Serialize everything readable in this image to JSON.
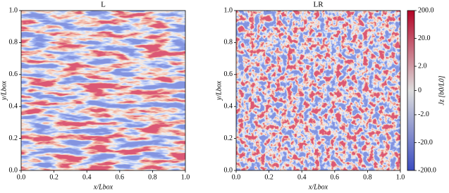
{
  "chart_data": [
    {
      "type": "heatmap",
      "title": "L",
      "xlabel": "x/Lbox",
      "ylabel": "y/Lbox",
      "xlim": [
        0,
        1
      ],
      "ylim": [
        0,
        1
      ],
      "xticks": [
        {
          "value": 0,
          "label": "0.0"
        },
        0.2,
        0.4,
        0.6,
        0.8,
        {
          "value": 1,
          "label": "1.0"
        }
      ],
      "yticks": [
        {
          "value": 0,
          "label": "0.0"
        },
        0.2,
        0.4,
        0.6,
        0.8,
        {
          "value": 1,
          "label": "1.0"
        }
      ]
    },
    {
      "type": "heatmap",
      "title": "LR",
      "xlabel": "x/Lbox",
      "ylabel": "y/Lbox",
      "xlim": [
        0,
        1
      ],
      "ylim": [
        0,
        1
      ],
      "xticks": [
        {
          "value": 0,
          "label": "0.0"
        },
        0.2,
        0.4,
        0.6,
        0.8,
        {
          "value": 1,
          "label": "1.0"
        }
      ],
      "yticks": [
        {
          "value": 0,
          "label": "0.0"
        },
        0.2,
        0.4,
        0.6,
        0.8,
        {
          "value": 1,
          "label": "1.0"
        }
      ],
      "colorbar": {
        "label": "Jz [b0/L0]",
        "scale": "symlog",
        "lim": [
          -200,
          200
        ],
        "ticks": [
          {
            "value": -200,
            "label": "-200.0"
          },
          {
            "value": -20,
            "label": "-20.0"
          },
          {
            "value": -2,
            "label": "-2.0"
          },
          0,
          {
            "value": 2,
            "label": "2.0"
          },
          {
            "value": 20,
            "label": "20.0"
          },
          {
            "value": 200,
            "label": "200.0"
          }
        ],
        "colors": [
          "#3b4cc0",
          "#dddddd",
          "#b40426"
        ]
      }
    }
  ]
}
